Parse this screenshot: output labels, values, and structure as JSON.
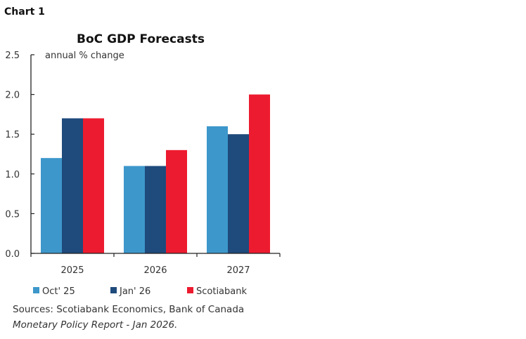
{
  "chart_label": "Chart 1",
  "chart_data": {
    "type": "bar",
    "title": "BoC GDP Forecasts",
    "ylabel": "annual % change",
    "xlabel": "",
    "categories": [
      "2025",
      "2026",
      "2027"
    ],
    "series": [
      {
        "name": "Oct' 25",
        "color": "#3d97cb",
        "values": [
          1.2,
          1.1,
          1.6
        ]
      },
      {
        "name": "Jan' 26",
        "color": "#1f4a7c",
        "values": [
          1.7,
          1.1,
          1.5
        ]
      },
      {
        "name": "Scotiabank",
        "color": "#ed1b2f",
        "values": [
          1.7,
          1.3,
          2.0
        ]
      }
    ],
    "ylim": [
      0,
      2.5
    ],
    "yticks": [
      "0.0",
      "0.5",
      "1.0",
      "1.5",
      "2.0",
      "2.5"
    ],
    "grid": false,
    "legend": "bottom"
  },
  "sources": {
    "line1": "Sources: Scotiabank Economics, Bank of Canada",
    "line2": "Monetary Policy Report - Jan 2026."
  }
}
